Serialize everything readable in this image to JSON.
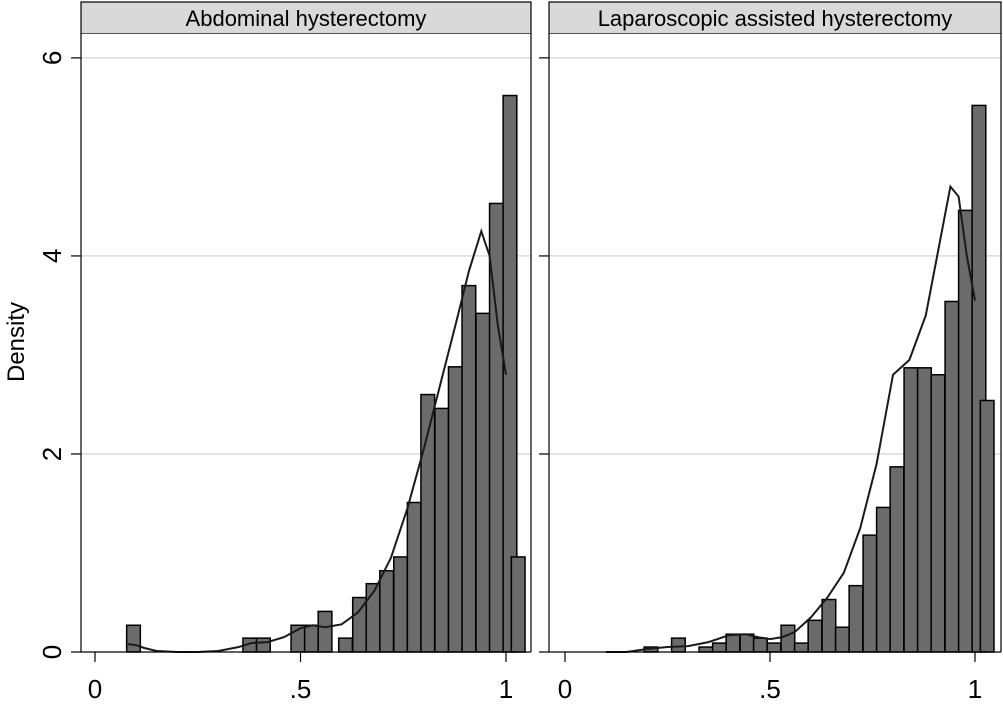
{
  "chart_data": {
    "type": "bar",
    "ylabel": "Density",
    "xlim": [
      0,
      1.03
    ],
    "ylim": [
      0,
      6.1
    ],
    "yticks": [
      0,
      2,
      4,
      6
    ],
    "ytick_labels": [
      "0",
      "2",
      "4",
      "6"
    ],
    "xticks": [
      0,
      0.5,
      1
    ],
    "xtick_labels": [
      "0",
      ".5",
      "1"
    ],
    "grid": true,
    "bin_width": 0.0333,
    "panels": [
      {
        "title": "Abdominal hysterectomy",
        "histogram": {
          "bin_starts": [
            0.077,
            0.36,
            0.393,
            0.477,
            0.51,
            0.543,
            0.593,
            0.627,
            0.66,
            0.693,
            0.727,
            0.76,
            0.793,
            0.827,
            0.86,
            0.893,
            0.927,
            0.96,
            0.993
          ],
          "values": [
            0.27,
            0.14,
            0.14,
            0.27,
            0.27,
            0.41,
            0.14,
            0.55,
            0.69,
            0.82,
            0.96,
            1.51,
            2.6,
            2.46,
            2.88,
            3.7,
            3.42,
            4.53,
            5.62
          ],
          "last_bin_value": 0.96
        },
        "kde": {
          "x": [
            0.08,
            0.1,
            0.12,
            0.15,
            0.2,
            0.25,
            0.3,
            0.35,
            0.38,
            0.42,
            0.46,
            0.5,
            0.53,
            0.56,
            0.6,
            0.64,
            0.68,
            0.72,
            0.76,
            0.8,
            0.84,
            0.88,
            0.91,
            0.94,
            0.96,
            0.98,
            1.0
          ],
          "y": [
            0.08,
            0.07,
            0.04,
            0.01,
            0.0,
            0.0,
            0.01,
            0.05,
            0.09,
            0.1,
            0.15,
            0.24,
            0.27,
            0.25,
            0.28,
            0.4,
            0.62,
            0.95,
            1.45,
            2.05,
            2.7,
            3.35,
            3.85,
            4.25,
            4.0,
            3.3,
            2.8
          ]
        }
      },
      {
        "title": "Laparoscopic assisted hysterectomy",
        "histogram": {
          "bin_starts": [
            0.193,
            0.26,
            0.327,
            0.36,
            0.393,
            0.427,
            0.46,
            0.493,
            0.527,
            0.56,
            0.593,
            0.627,
            0.66,
            0.693,
            0.727,
            0.76,
            0.793,
            0.827,
            0.86,
            0.893,
            0.927,
            0.96,
            0.993
          ],
          "values": [
            0.05,
            0.14,
            0.05,
            0.09,
            0.18,
            0.18,
            0.14,
            0.09,
            0.27,
            0.09,
            0.32,
            0.53,
            0.25,
            0.67,
            1.18,
            1.46,
            1.87,
            2.87,
            2.87,
            2.8,
            3.54,
            4.46,
            5.52
          ],
          "last_bin_value": 2.54
        },
        "kde": {
          "x": [
            0.1,
            0.15,
            0.2,
            0.25,
            0.3,
            0.35,
            0.4,
            0.44,
            0.47,
            0.5,
            0.53,
            0.56,
            0.6,
            0.64,
            0.68,
            0.72,
            0.76,
            0.8,
            0.84,
            0.88,
            0.91,
            0.94,
            0.96,
            0.98,
            1.0
          ],
          "y": [
            0.0,
            0.0,
            0.03,
            0.05,
            0.06,
            0.1,
            0.17,
            0.18,
            0.15,
            0.13,
            0.15,
            0.2,
            0.35,
            0.55,
            0.8,
            1.25,
            1.9,
            2.8,
            2.95,
            3.4,
            4.05,
            4.7,
            4.6,
            4.0,
            3.55
          ]
        }
      }
    ]
  },
  "colors": {
    "bar_fill": "#6b6b6b",
    "bar_stroke": "#000000",
    "kde_line": "#1a1a1a",
    "header_fill": "#d9d9d9",
    "grid": "#dcdcdc"
  }
}
